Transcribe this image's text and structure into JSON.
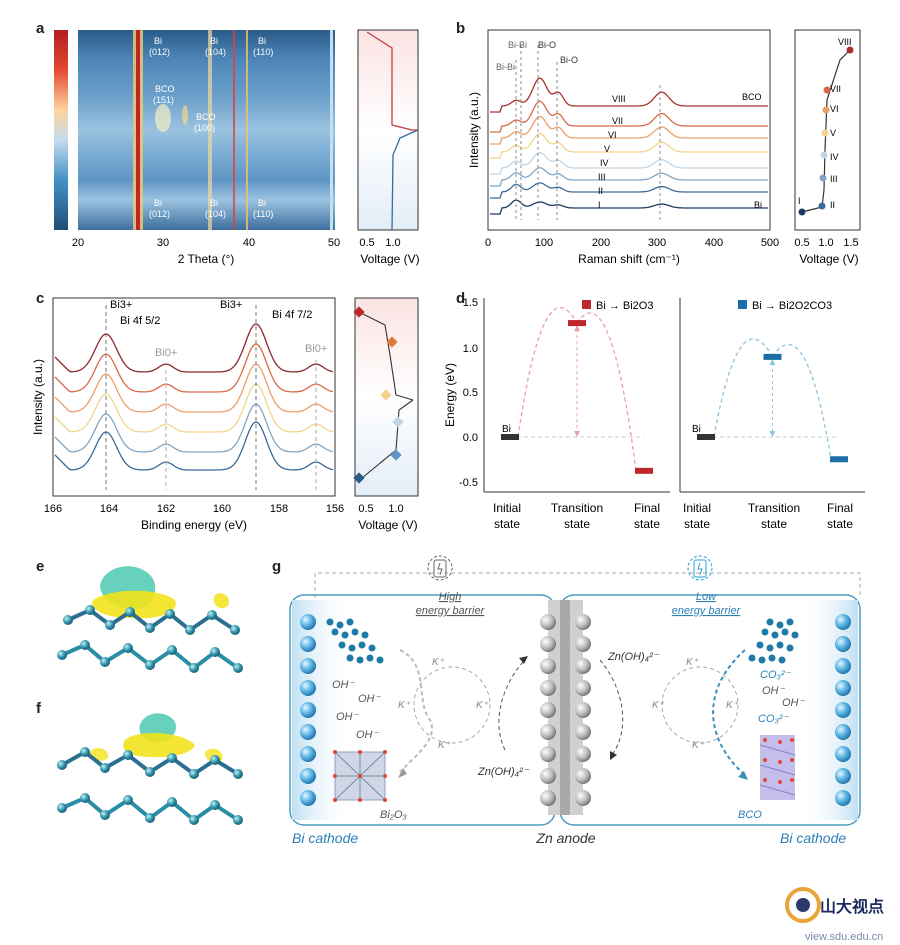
{
  "panels": {
    "a": "a",
    "b": "b",
    "c": "c",
    "d": "d",
    "e": "e",
    "f": "f",
    "g": "g"
  },
  "a": {
    "x_axis_title": "2 Theta (°)",
    "x_ticks": [
      "20",
      "30",
      "40",
      "50"
    ],
    "v_axis_title": "Voltage  (V)",
    "v_ticks": [
      "0.5",
      "1.0"
    ],
    "peaks_top": [
      {
        "name": "Bi",
        "hkl": "(012)"
      },
      {
        "name": "Bi",
        "hkl": "(104)"
      },
      {
        "name": "Bi",
        "hkl": "(110)"
      }
    ],
    "peaks_mid": [
      {
        "name": "BCO",
        "hkl": "(151)"
      },
      {
        "name": "BCO",
        "hkl": "(100)"
      }
    ],
    "peaks_bottom": [
      {
        "name": "Bi",
        "hkl": "(012)"
      },
      {
        "name": "Bi",
        "hkl": "(104)"
      },
      {
        "name": "Bi",
        "hkl": "(110)"
      }
    ]
  },
  "b": {
    "x_axis_title": "Raman shift (cm⁻¹)",
    "y_axis_title": "Intensity (a.u.)",
    "x_ticks": [
      "0",
      "100",
      "200",
      "300",
      "400",
      "500"
    ],
    "annotations": [
      "Bi-Bi",
      "Bi-Bi",
      "Bi-O",
      "Bi-O"
    ],
    "curve_labels": [
      "VIII",
      "VII",
      "VI",
      "V",
      "IV",
      "III",
      "II",
      "I"
    ],
    "right_labels": [
      "BCO",
      "Bi"
    ],
    "v_axis_title": "Voltage (V)",
    "v_ticks": [
      "0.5",
      "1.0",
      "1.5"
    ],
    "state_labels": [
      "I",
      "II",
      "III",
      "IV",
      "V",
      "VI",
      "VII",
      "VIII"
    ],
    "colors": [
      "#1f3b63",
      "#3b6a99",
      "#7fa6c8",
      "#c0d6e6",
      "#f3d48c",
      "#eba069",
      "#d86a47",
      "#a5332b",
      "#7a1e1e"
    ]
  },
  "c": {
    "x_axis_title": "Binding energy (eV)",
    "y_axis_title": "Intensity (a.u.)",
    "x_ticks": [
      "166",
      "164",
      "162",
      "160",
      "158",
      "156"
    ],
    "label_bi3_left": "Bi3+",
    "label_4f52": "Bi 4f 5/2",
    "label_bi0_left": "Bi0+",
    "label_bi3_right": "Bi3+",
    "label_4f72": "Bi 4f 7/2",
    "label_bi0_right": "Bi0+",
    "v_axis_title": "Voltage  (V)",
    "v_ticks": [
      "0.5",
      "1.0"
    ]
  },
  "d": {
    "y_axis_title": "Energy (eV)",
    "y_ticks": [
      "1.5",
      "1.0",
      "0.5",
      "0.0",
      "-0.5"
    ],
    "x_states": [
      "Initial state",
      "Transition state",
      "Final state"
    ],
    "legend_left": "Bi → Bi2O3",
    "legend_right": "Bi → Bi2O2CO3",
    "bi_label": "Bi",
    "chart_data": [
      {
        "type": "line",
        "series": [
          {
            "name": "Bi → Bi2O3",
            "values": [
              0.0,
              1.28,
              -0.38
            ]
          }
        ],
        "categories": [
          "Initial state",
          "Transition state",
          "Final state"
        ],
        "ylim": [
          -0.55,
          1.6
        ]
      },
      {
        "type": "line",
        "series": [
          {
            "name": "Bi → Bi2O2CO3",
            "values": [
              0.0,
              0.9,
              -0.25
            ]
          }
        ],
        "categories": [
          "Initial state",
          "Transition state",
          "Final state"
        ],
        "ylim": [
          -0.55,
          1.6
        ]
      }
    ]
  },
  "g": {
    "high_barrier": "High\nenergy barrier",
    "low_barrier": "Low\nenergy barrier",
    "oh_labels": [
      "OH⁻",
      "OH⁻",
      "OH⁻",
      "OH⁻"
    ],
    "k_labels": [
      "K⁺",
      "K⁺",
      "K⁺",
      "K⁺"
    ],
    "zincate": "Zn(OH)₄²⁻",
    "co3": "CO₃²⁻",
    "bi2o3": "Bi₂O₃",
    "bco": "BCO",
    "bi_cathode": "Bi cathode",
    "zn_anode": "Zn anode"
  },
  "watermark": {
    "text": "山大视点",
    "url_text": "view.sdu.edu.cn"
  }
}
